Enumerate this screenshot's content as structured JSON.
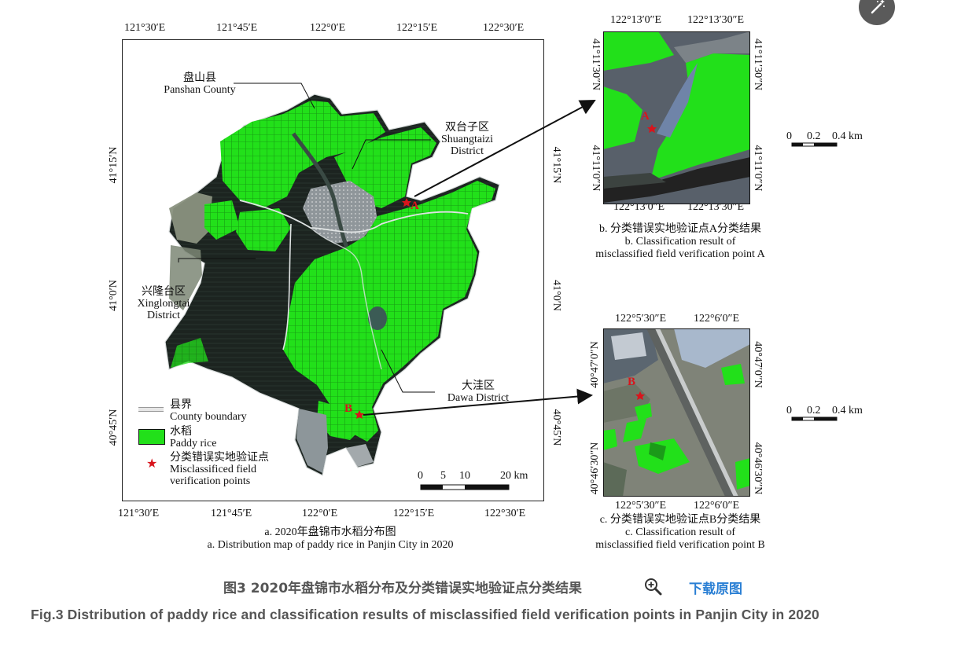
{
  "main_map": {
    "top_lon_labels": [
      "121°30′E",
      "121°45′E",
      "122°0′E",
      "122°15′E",
      "122°30′E"
    ],
    "bottom_lon_labels": [
      "121°30′E",
      "121°45′E",
      "122°0′E",
      "122°15′E",
      "122°30′E"
    ],
    "lat_labels": [
      "41°15′N",
      "41°0′N",
      "40°45′N"
    ],
    "places": {
      "panshan_cn": "盘山县",
      "panshan_en": "Panshan County",
      "shuangtaizi_cn": "双台子区",
      "shuangtaizi_en1": "Shuangtaizi",
      "shuangtaizi_en2": "District",
      "xinglongtai_cn": "兴隆台区",
      "xinglongtai_en1": "Xinglongtai",
      "xinglongtai_en2": "District",
      "dawa_cn": "大洼区",
      "dawa_en": "Dawa District"
    },
    "points": {
      "a": "A",
      "b": "B"
    },
    "legend": {
      "boundary_cn": "县界",
      "boundary_en": "County boundary",
      "rice_cn": "水稻",
      "rice_en": "Paddy rice",
      "point_cn": "分类错误实地验证点",
      "point_en1": "Misclassificed field",
      "point_en2": "verification points"
    },
    "scale": {
      "t0": "0",
      "t5": "5",
      "t10": "10",
      "t20": "20 km"
    },
    "caption_cn": "a. 2020年盘锦市水稻分布图",
    "caption_en": "a. Distribution map of paddy rice in Panjin City in 2020"
  },
  "inset_b": {
    "top_lon": [
      "122°13′0″E",
      "122°13′30″E"
    ],
    "bottom_lon": [
      "122°13′0″E",
      "122°13′30″E"
    ],
    "lat": [
      "41°11′30″N",
      "41°11′0″N"
    ],
    "point": "A",
    "scale": {
      "t0": "0",
      "t1": "0.2",
      "t2": "0.4 km"
    },
    "caption_cn": "b. 分类错误实地验证点A分类结果",
    "caption_en1": "b. Classification result of",
    "caption_en2": "misclassified field verification point A"
  },
  "inset_c": {
    "top_lon": [
      "122°5′30″E",
      "122°6′0″E"
    ],
    "bottom_lon": [
      "122°5′30″E",
      "122°6′0″E"
    ],
    "lat": [
      "40°47′0″N",
      "40°46′30″N"
    ],
    "point": "B",
    "scale": {
      "t0": "0",
      "t1": "0.2",
      "t2": "0.4 km"
    },
    "caption_cn": "c. 分类错误实地验证点B分类结果",
    "caption_en1": "c. Classification result of",
    "caption_en2": "misclassified field verification point B"
  },
  "figure": {
    "title_cn": "图3 2020年盘锦市水稻分布及分类错误实地验证点分类结果",
    "download": "下载原图",
    "title_en": "Fig.3 Distribution of paddy rice and classification results of misclassified field verification points in Panjin City in 2020"
  },
  "colors": {
    "rice": "#22e01a",
    "marker": "#d8141c",
    "link": "#2a7fd4"
  },
  "icons": [
    "zoom-in-icon",
    "magic-wand-icon"
  ]
}
